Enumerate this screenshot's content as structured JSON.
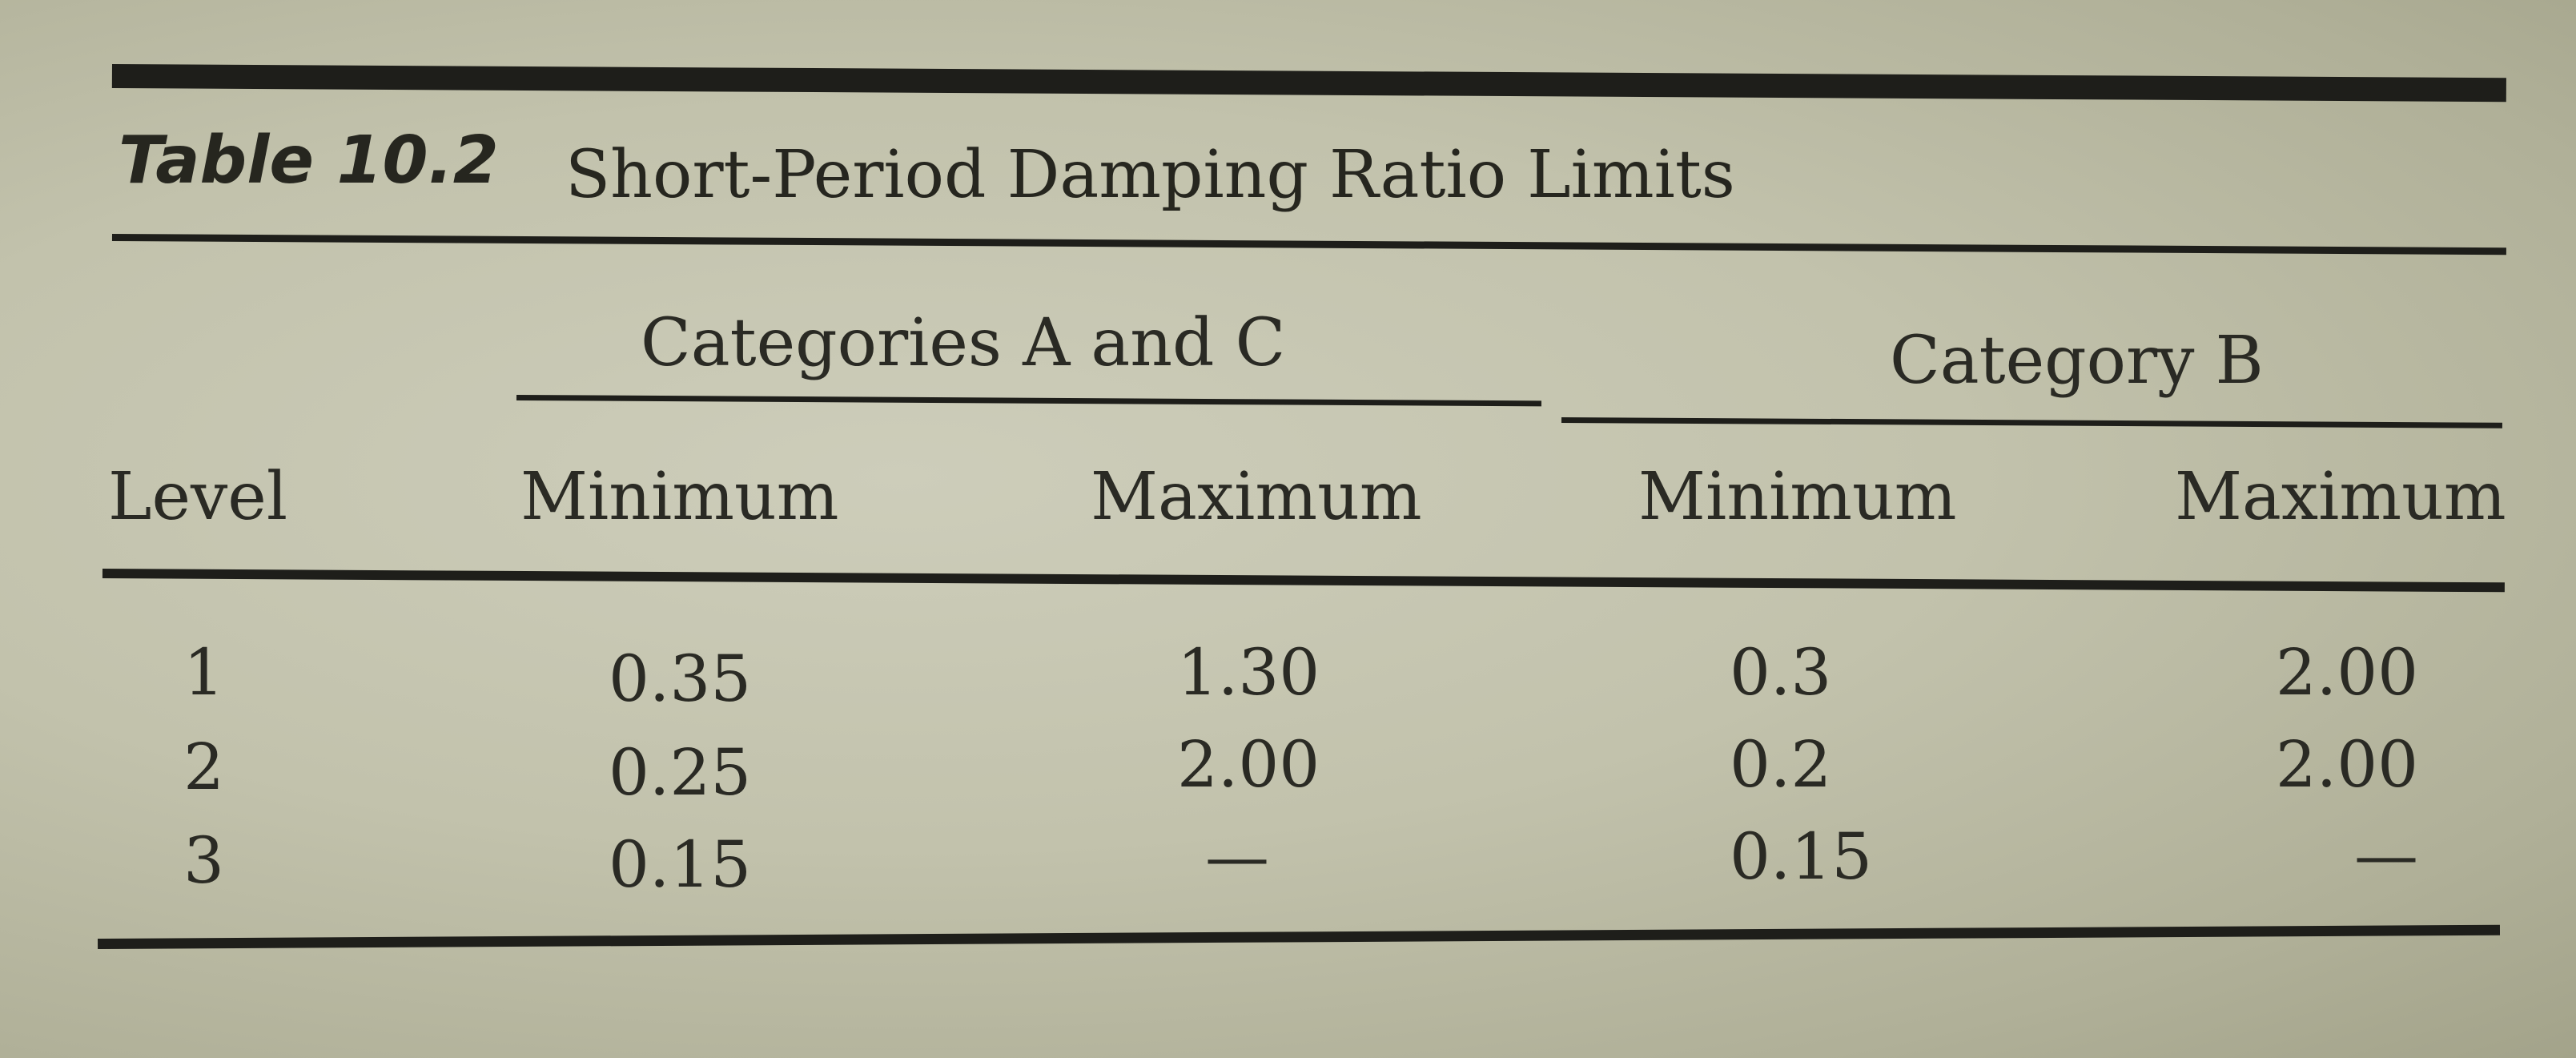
{
  "table": {
    "number": "Table 10.2",
    "title": "Short-Period Damping Ratio Limits",
    "group_headers": [
      "Categories A and C",
      "Category B"
    ],
    "column_headers": [
      "Level",
      "Minimum",
      "Maximum",
      "Minimum",
      "Maximum"
    ],
    "rows": [
      [
        "1",
        "0.35",
        "1.30",
        "0.3",
        "2.00"
      ],
      [
        "2",
        "0.25",
        "2.00",
        "0.2",
        "2.00"
      ],
      [
        "3",
        "0.15",
        "—",
        "0.15",
        "—"
      ]
    ]
  }
}
